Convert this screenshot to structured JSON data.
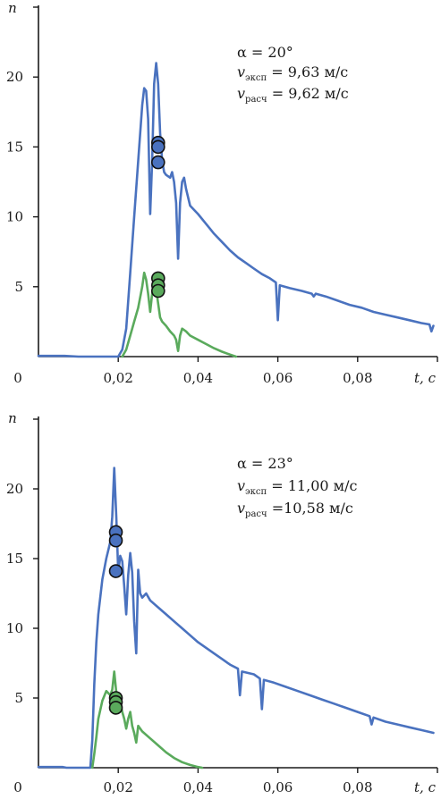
{
  "chart_data": [
    {
      "type": "line",
      "title": "",
      "xlabel": "t, c",
      "ylabel": "n",
      "xlim": [
        0,
        0.1
      ],
      "ylim": [
        0,
        25
      ],
      "x_ticks": [
        0.02,
        0.04,
        0.06,
        0.08
      ],
      "x_tick_labels": [
        "0,02",
        "0,04",
        "0,06",
        "0,08"
      ],
      "y_ticks": [
        5,
        10,
        15,
        20,
        25
      ],
      "y_tick_labels": [
        "5",
        "10",
        "15",
        "20",
        ""
      ],
      "origin_label": "0",
      "annotation": {
        "alpha_line": "α = 20°",
        "v_exp_var": "v",
        "v_exp_sub": "эксп",
        "v_exp_value": " = 9,63 м/с",
        "v_calc_var": "v",
        "v_calc_sub": "расч",
        "v_calc_value": " = 9,62 м/с"
      },
      "series": [
        {
          "color": "#4a72bf",
          "points": [
            [
              0,
              0.05
            ],
            [
              0.0065,
              0.05
            ],
            [
              0.01,
              0
            ],
            [
              0.02,
              0
            ],
            [
              0.021,
              0.5
            ],
            [
              0.022,
              2
            ],
            [
              0.023,
              6
            ],
            [
              0.024,
              10
            ],
            [
              0.025,
              14
            ],
            [
              0.026,
              18
            ],
            [
              0.0265,
              19.2
            ],
            [
              0.027,
              19
            ],
            [
              0.0275,
              17
            ],
            [
              0.028,
              10.2
            ],
            [
              0.0285,
              14
            ],
            [
              0.029,
              19.5
            ],
            [
              0.0295,
              21
            ],
            [
              0.03,
              19.5
            ],
            [
              0.0305,
              16
            ],
            [
              0.031,
              14
            ],
            [
              0.0315,
              13.2
            ],
            [
              0.032,
              13
            ],
            [
              0.033,
              12.8
            ],
            [
              0.0335,
              13.2
            ],
            [
              0.034,
              12.5
            ],
            [
              0.0345,
              11
            ],
            [
              0.035,
              7
            ],
            [
              0.0355,
              11
            ],
            [
              0.036,
              12.5
            ],
            [
              0.0365,
              12.8
            ],
            [
              0.037,
              12
            ],
            [
              0.038,
              10.8
            ],
            [
              0.04,
              10.2
            ],
            [
              0.042,
              9.5
            ],
            [
              0.044,
              8.8
            ],
            [
              0.046,
              8.2
            ],
            [
              0.048,
              7.6
            ],
            [
              0.05,
              7.1
            ],
            [
              0.052,
              6.7
            ],
            [
              0.054,
              6.3
            ],
            [
              0.056,
              5.9
            ],
            [
              0.058,
              5.6
            ],
            [
              0.0595,
              5.3
            ],
            [
              0.06,
              2.6
            ],
            [
              0.0605,
              5.1
            ],
            [
              0.063,
              4.9
            ],
            [
              0.066,
              4.7
            ],
            [
              0.0685,
              4.5
            ],
            [
              0.069,
              4.3
            ],
            [
              0.0695,
              4.5
            ],
            [
              0.072,
              4.3
            ],
            [
              0.075,
              4.0
            ],
            [
              0.078,
              3.7
            ],
            [
              0.081,
              3.5
            ],
            [
              0.084,
              3.2
            ],
            [
              0.087,
              3.0
            ],
            [
              0.09,
              2.8
            ],
            [
              0.093,
              2.6
            ],
            [
              0.096,
              2.4
            ],
            [
              0.098,
              2.3
            ],
            [
              0.0985,
              1.8
            ],
            [
              0.099,
              2.2
            ]
          ]
        },
        {
          "color": "#5aaa5c",
          "points": [
            [
              0.021,
              0
            ],
            [
              0.022,
              0.5
            ],
            [
              0.023,
              1.5
            ],
            [
              0.024,
              2.5
            ],
            [
              0.025,
              3.5
            ],
            [
              0.026,
              5
            ],
            [
              0.0265,
              6
            ],
            [
              0.027,
              5.5
            ],
            [
              0.0275,
              4.5
            ],
            [
              0.028,
              3.2
            ],
            [
              0.0285,
              4.5
            ],
            [
              0.029,
              5.8
            ],
            [
              0.0295,
              4.8
            ],
            [
              0.03,
              3.8
            ],
            [
              0.0305,
              2.8
            ],
            [
              0.031,
              2.5
            ],
            [
              0.032,
              2.2
            ],
            [
              0.033,
              1.8
            ],
            [
              0.034,
              1.5
            ],
            [
              0.0345,
              1.2
            ],
            [
              0.035,
              0.4
            ],
            [
              0.0355,
              1.5
            ],
            [
              0.036,
              2
            ],
            [
              0.037,
              1.8
            ],
            [
              0.038,
              1.5
            ],
            [
              0.04,
              1.2
            ],
            [
              0.042,
              0.9
            ],
            [
              0.044,
              0.6
            ],
            [
              0.046,
              0.35
            ],
            [
              0.048,
              0.15
            ],
            [
              0.0495,
              0
            ]
          ]
        }
      ],
      "markers": [
        {
          "x": 0.03,
          "y": 15.3,
          "color": "#4a72bf"
        },
        {
          "x": 0.03,
          "y": 15.0,
          "color": "#4a72bf"
        },
        {
          "x": 0.03,
          "y": 13.9,
          "color": "#4a72bf"
        },
        {
          "x": 0.03,
          "y": 5.6,
          "color": "#5aaa5c"
        },
        {
          "x": 0.03,
          "y": 5.1,
          "color": "#5aaa5c"
        },
        {
          "x": 0.03,
          "y": 4.7,
          "color": "#5aaa5c"
        }
      ]
    },
    {
      "type": "line",
      "title": "",
      "xlabel": "t, c",
      "ylabel": "n",
      "xlim": [
        0,
        0.1
      ],
      "ylim": [
        0,
        25
      ],
      "x_ticks": [
        0.02,
        0.04,
        0.06,
        0.08
      ],
      "x_tick_labels": [
        "0,02",
        "0,04",
        "0,06",
        "0,08"
      ],
      "y_ticks": [
        5,
        10,
        15,
        20,
        25
      ],
      "y_tick_labels": [
        "5",
        "10",
        "15",
        "20",
        ""
      ],
      "origin_label": "0",
      "annotation": {
        "alpha_line": "α = 23°",
        "v_exp_var": "v",
        "v_exp_sub": "эксп",
        "v_exp_value": " = 11,00 м/с",
        "v_calc_var": "v",
        "v_calc_sub": "расч",
        "v_calc_value": " =10,58 м/с"
      },
      "series": [
        {
          "color": "#4a72bf",
          "points": [
            [
              0,
              0.05
            ],
            [
              0.006,
              0.05
            ],
            [
              0.007,
              0
            ],
            [
              0.013,
              0
            ],
            [
              0.0135,
              2
            ],
            [
              0.014,
              6
            ],
            [
              0.0145,
              9
            ],
            [
              0.015,
              11
            ],
            [
              0.016,
              13.5
            ],
            [
              0.017,
              15
            ],
            [
              0.018,
              16.2
            ],
            [
              0.0185,
              18
            ],
            [
              0.019,
              21.5
            ],
            [
              0.0195,
              18
            ],
            [
              0.02,
              14
            ],
            [
              0.0205,
              15.2
            ],
            [
              0.021,
              14.8
            ],
            [
              0.0215,
              13
            ],
            [
              0.022,
              11
            ],
            [
              0.0225,
              13.8
            ],
            [
              0.023,
              15.4
            ],
            [
              0.0235,
              14
            ],
            [
              0.024,
              10.5
            ],
            [
              0.0245,
              8.2
            ],
            [
              0.025,
              14.2
            ],
            [
              0.0255,
              12.5
            ],
            [
              0.026,
              12.2
            ],
            [
              0.027,
              12.5
            ],
            [
              0.028,
              12
            ],
            [
              0.03,
              11.5
            ],
            [
              0.032,
              11
            ],
            [
              0.034,
              10.5
            ],
            [
              0.036,
              10
            ],
            [
              0.038,
              9.5
            ],
            [
              0.04,
              9
            ],
            [
              0.042,
              8.6
            ],
            [
              0.044,
              8.2
            ],
            [
              0.046,
              7.8
            ],
            [
              0.048,
              7.4
            ],
            [
              0.05,
              7.1
            ],
            [
              0.0505,
              5.2
            ],
            [
              0.051,
              6.9
            ],
            [
              0.054,
              6.7
            ],
            [
              0.0555,
              6.4
            ],
            [
              0.056,
              4.2
            ],
            [
              0.0565,
              6.3
            ],
            [
              0.059,
              6.1
            ],
            [
              0.062,
              5.8
            ],
            [
              0.065,
              5.5
            ],
            [
              0.068,
              5.2
            ],
            [
              0.071,
              4.9
            ],
            [
              0.074,
              4.6
            ],
            [
              0.077,
              4.3
            ],
            [
              0.08,
              4.0
            ],
            [
              0.083,
              3.7
            ],
            [
              0.0835,
              3.1
            ],
            [
              0.084,
              3.6
            ],
            [
              0.087,
              3.3
            ],
            [
              0.09,
              3.1
            ],
            [
              0.093,
              2.9
            ],
            [
              0.096,
              2.7
            ],
            [
              0.099,
              2.5
            ]
          ]
        },
        {
          "color": "#5aaa5c",
          "points": [
            [
              0.0135,
              0
            ],
            [
              0.014,
              1
            ],
            [
              0.0145,
              2.2
            ],
            [
              0.015,
              3.5
            ],
            [
              0.016,
              4.8
            ],
            [
              0.017,
              5.5
            ],
            [
              0.018,
              5.2
            ],
            [
              0.0185,
              5.6
            ],
            [
              0.019,
              6.9
            ],
            [
              0.0195,
              5.4
            ],
            [
              0.02,
              4.2
            ],
            [
              0.0205,
              4.6
            ],
            [
              0.021,
              4.0
            ],
            [
              0.0215,
              3.5
            ],
            [
              0.022,
              2.8
            ],
            [
              0.0225,
              3.5
            ],
            [
              0.023,
              4.0
            ],
            [
              0.0235,
              3.0
            ],
            [
              0.024,
              2.5
            ],
            [
              0.0245,
              1.8
            ],
            [
              0.025,
              3.0
            ],
            [
              0.026,
              2.6
            ],
            [
              0.028,
              2.1
            ],
            [
              0.03,
              1.6
            ],
            [
              0.032,
              1.1
            ],
            [
              0.034,
              0.7
            ],
            [
              0.036,
              0.4
            ],
            [
              0.038,
              0.2
            ],
            [
              0.04,
              0.05
            ],
            [
              0.041,
              0
            ]
          ]
        }
      ],
      "markers": [
        {
          "x": 0.0194,
          "y": 16.9,
          "color": "#4a72bf"
        },
        {
          "x": 0.0194,
          "y": 16.3,
          "color": "#4a72bf"
        },
        {
          "x": 0.0194,
          "y": 14.1,
          "color": "#4a72bf"
        },
        {
          "x": 0.0194,
          "y": 5.0,
          "color": "#5aaa5c"
        },
        {
          "x": 0.0194,
          "y": 4.7,
          "color": "#5aaa5c"
        },
        {
          "x": 0.0194,
          "y": 4.3,
          "color": "#5aaa5c"
        }
      ]
    }
  ]
}
